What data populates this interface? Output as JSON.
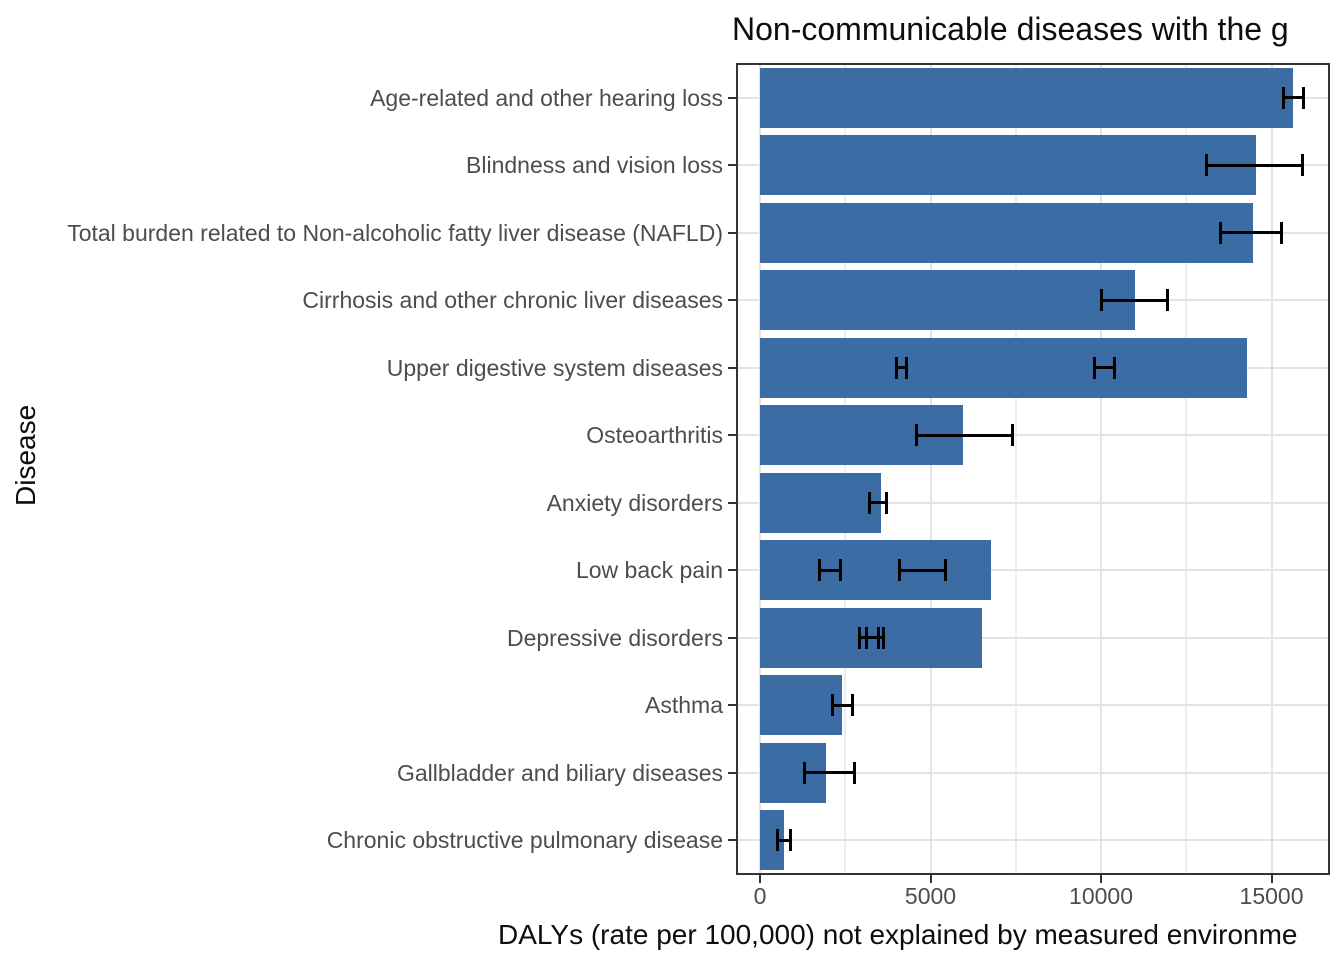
{
  "chart_data": {
    "type": "bar",
    "orientation": "horizontal",
    "title": "Non-communicable diseases with the g",
    "title_note": "clipped at right edge of image",
    "xlabel": "DALYs (rate per 100,000) not explained by measured environme",
    "ylabel": "Disease",
    "categories": [
      "Age-related and other hearing loss",
      "Blindness and vision loss",
      "Total burden related to Non-alcoholic fatty liver disease (NAFLD)",
      "Cirrhosis and other chronic liver diseases",
      "Upper digestive system diseases",
      "Osteoarthritis",
      "Anxiety disorders",
      "Low back pain",
      "Depressive disorders",
      "Asthma",
      "Gallbladder and biliary diseases",
      "Chronic obstructive pulmonary disease"
    ],
    "values": [
      15630,
      14550,
      14450,
      11000,
      14280,
      5950,
      3550,
      6770,
      6510,
      2400,
      1940,
      700
    ],
    "error_bars": [
      [
        [
          15350,
          15950
        ]
      ],
      [
        [
          13100,
          15900
        ]
      ],
      [
        [
          13500,
          15300
        ]
      ],
      [
        [
          10000,
          11950
        ]
      ],
      [
        [
          4000,
          4300
        ],
        [
          9800,
          10400
        ]
      ],
      [
        [
          4600,
          7400
        ]
      ],
      [
        [
          3200,
          3720
        ]
      ],
      [
        [
          1730,
          2350
        ],
        [
          4100,
          5430
        ]
      ],
      [
        [
          2930,
          3460
        ],
        [
          3130,
          3620
        ]
      ],
      [
        [
          2140,
          2700
        ]
      ],
      [
        [
          1290,
          2760
        ]
      ],
      [
        [
          500,
          880
        ]
      ]
    ],
    "x_ticks": [
      0,
      5000,
      10000,
      15000
    ],
    "x_tick_labels": [
      "0",
      "5000",
      "10000",
      "15000"
    ],
    "x_minor_ticks": [
      2500,
      7500,
      12500
    ],
    "xlim": [
      -675,
      16685
    ],
    "grid": true,
    "legend": false,
    "colors": {
      "bar": "#3B6DA4",
      "error_bar": "#000000",
      "grid_major": "#E3E3E3",
      "grid_minor": "#EDEDED",
      "panel_border": "#333333",
      "axis_text": "#4D4D4D",
      "panel_background": "#FFFFFF"
    }
  }
}
